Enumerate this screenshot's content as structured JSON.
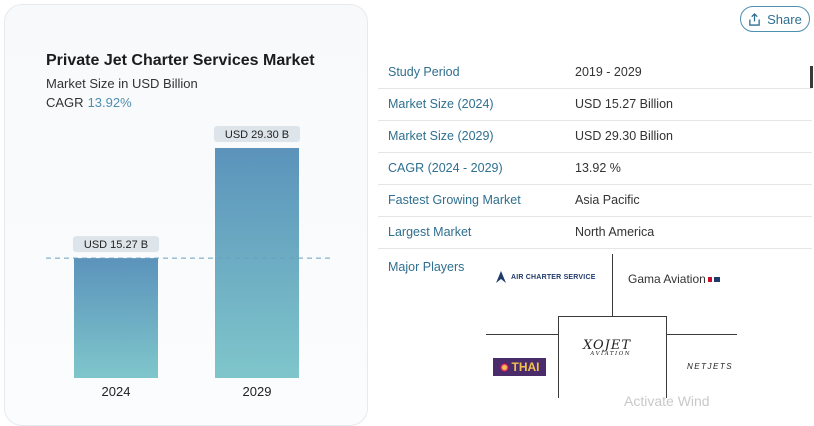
{
  "share": {
    "label": "Share",
    "icon": "share-icon"
  },
  "chart_data": {
    "type": "bar",
    "title": "Private Jet Charter Services Market",
    "subtitle": "Market Size in USD Billion",
    "cagr_label": "CAGR",
    "cagr_value": "13.92%",
    "categories": [
      "2024",
      "2029"
    ],
    "values": [
      15.27,
      29.3
    ],
    "data_labels": [
      "USD 15.27 B",
      "USD 29.30 B"
    ],
    "reference_line": 15.27,
    "ylim": [
      0,
      29.3
    ],
    "grid": false,
    "colors": {
      "bar_top": "#5b93bb",
      "bar_bottom": "#7fc6cb",
      "label_bg": "#dde4ea",
      "ref_line": "#6a9fbd"
    }
  },
  "market_info": {
    "rows": [
      {
        "key": "Study Period",
        "value": "2019 - 2029"
      },
      {
        "key": "Market Size (2024)",
        "value": "USD 15.27 Billion"
      },
      {
        "key": "Market Size (2029)",
        "value": "USD 29.30 Billion"
      },
      {
        "key": "CAGR (2024 - 2029)",
        "value": "13.92 %"
      },
      {
        "key": "Fastest Growing Market",
        "value": "Asia Pacific"
      },
      {
        "key": "Largest Market",
        "value": "North America"
      }
    ],
    "major_players_label": "Major Players",
    "players": {
      "air_charter": "AIR CHARTER SERVICE",
      "gama": "Gama Aviation",
      "xojet": "XOJET",
      "xojet_sub": "AVIATION",
      "thai": "THAI",
      "netjets": "NETJETS"
    }
  },
  "watermark": "Activate Wind"
}
